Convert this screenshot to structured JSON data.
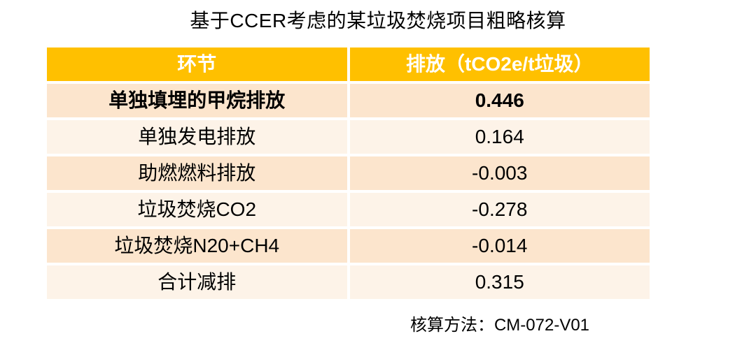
{
  "title": "基于CCER考虑的某垃圾焚烧项目粗略核算",
  "table": {
    "headers": [
      "环节",
      "排放（tCO2e/t垃圾）"
    ],
    "rows": [
      {
        "label": "单独填埋的甲烷排放",
        "value": "0.446",
        "emphasis": true
      },
      {
        "label": "单独发电排放",
        "value": "0.164",
        "emphasis": false
      },
      {
        "label": "助燃燃料排放",
        "value": "-0.003",
        "emphasis": false
      },
      {
        "label": "垃圾焚烧CO2",
        "value": "-0.278",
        "emphasis": false
      },
      {
        "label": "垃圾焚烧N20+CH4",
        "value": "-0.014",
        "emphasis": false
      },
      {
        "label": "合计减排",
        "value": "0.315",
        "emphasis": false
      }
    ]
  },
  "footer": {
    "note": "核算方法：CM-072-V01"
  },
  "colors": {
    "page_bg": "#FFFFFF",
    "header_bg": "#FFC000",
    "header_text": "#FFFFFF",
    "row_odd_bg": "#FCE5CD",
    "row_even_bg": "#FDF3E8",
    "body_text": "#000000"
  },
  "chart_data": {
    "type": "table",
    "title": "基于CCER考虑的某垃圾焚烧项目粗略核算",
    "columns": [
      "环节",
      "排放（tCO2e/t垃圾）"
    ],
    "categories": [
      "单独填埋的甲烷排放",
      "单独发电排放",
      "助燃燃料排放",
      "垃圾焚烧CO2",
      "垃圾焚烧N20+CH4",
      "合计减排"
    ],
    "values": [
      0.446,
      0.164,
      -0.003,
      -0.278,
      -0.014,
      0.315
    ],
    "annotations": [
      "核算方法：CM-072-V01"
    ],
    "layout_hints": {
      "header_fill": "#FFC000",
      "banded_rows": true,
      "first_data_row_bold": true
    }
  }
}
